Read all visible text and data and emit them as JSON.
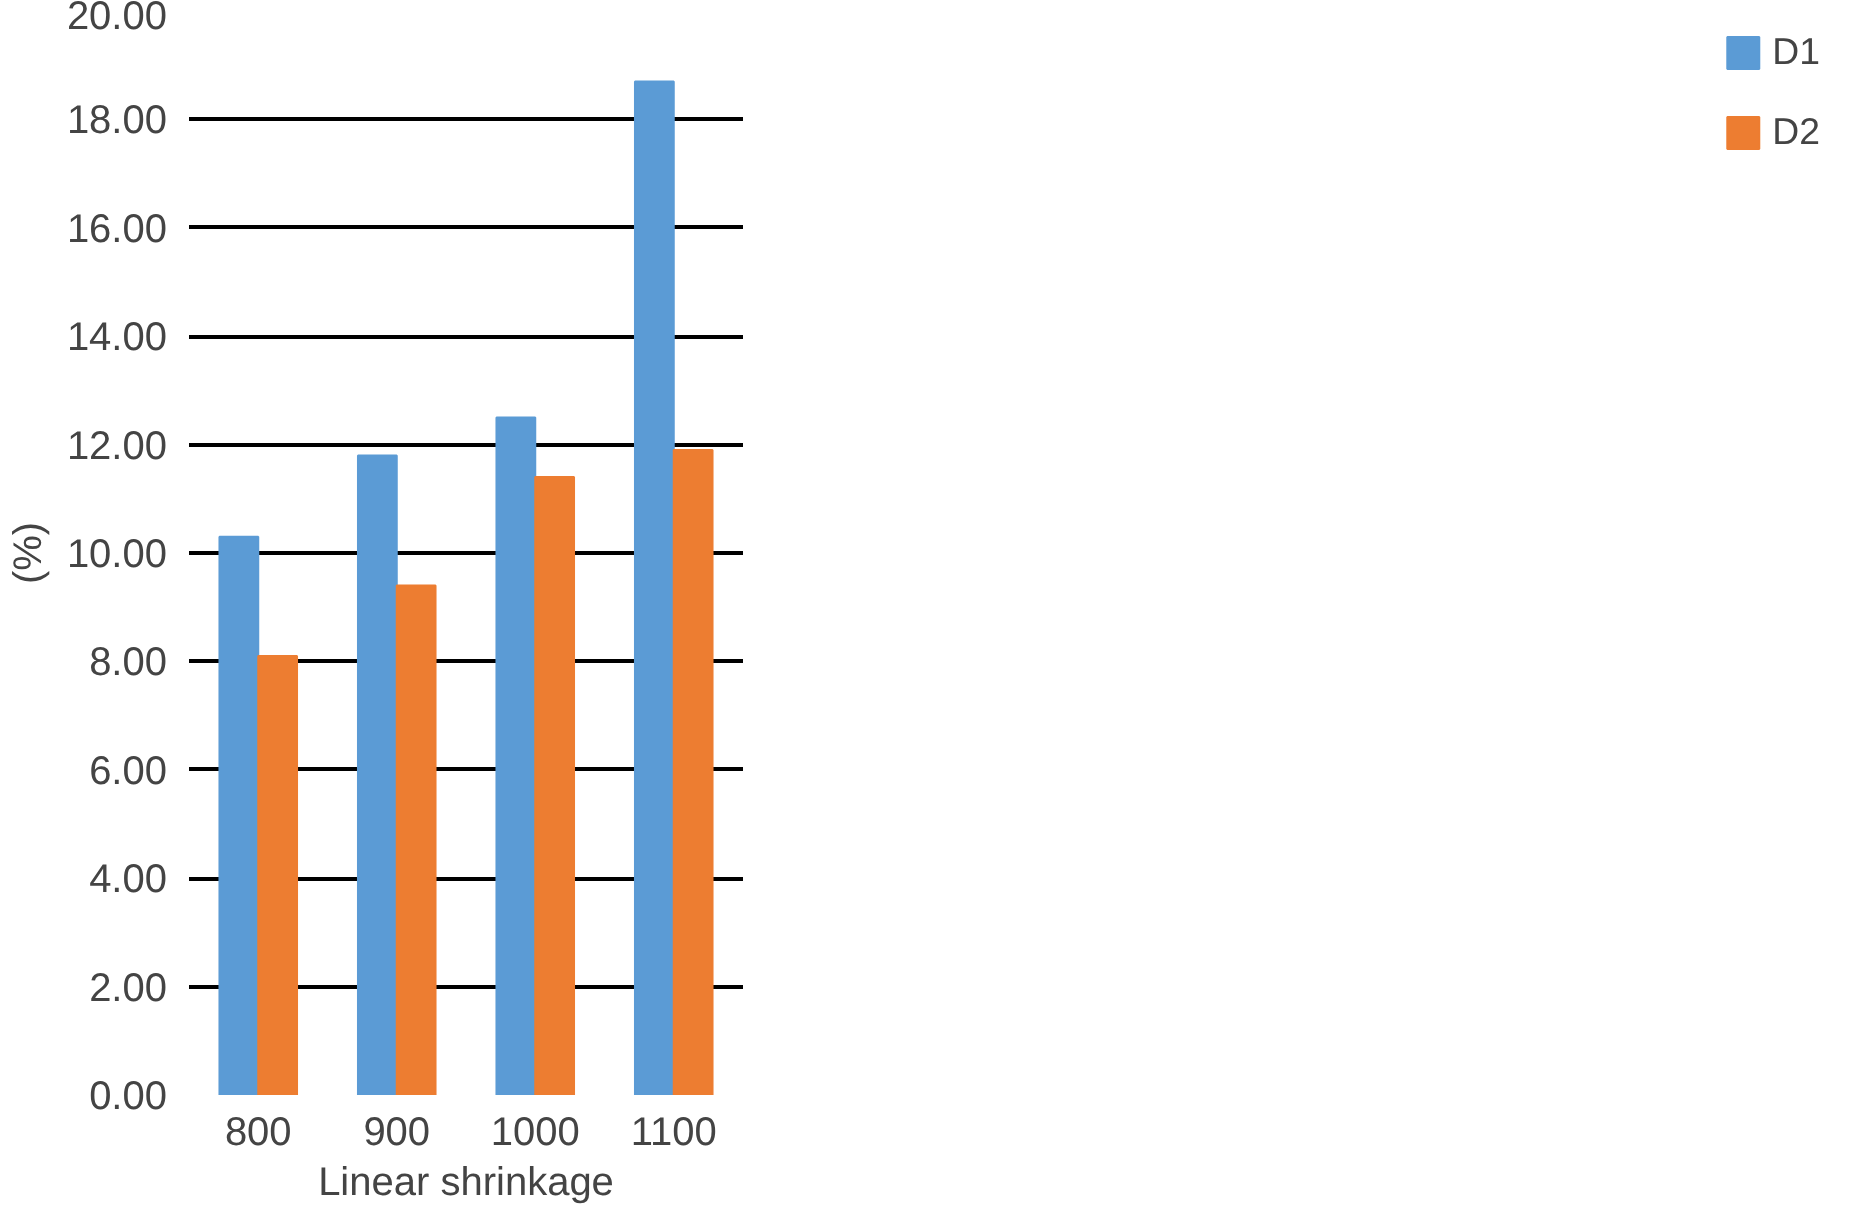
{
  "chart_data": {
    "type": "bar",
    "xlabel": "Linear shrinkage",
    "ylabel": "(%)",
    "categories": [
      "800",
      "900",
      "1000",
      "1100"
    ],
    "series": [
      {
        "name": "D1",
        "color": "#5b9bd5",
        "values": [
          10.3,
          11.8,
          12.5,
          18.7
        ]
      },
      {
        "name": "D2",
        "color": "#ed7d31",
        "values": [
          8.1,
          9.4,
          11.4,
          11.9
        ]
      }
    ],
    "ylim": [
      0,
      20
    ],
    "yticks": [
      {
        "value": 0,
        "label": "0.00"
      },
      {
        "value": 2,
        "label": "2.00"
      },
      {
        "value": 4,
        "label": "4.00"
      },
      {
        "value": 6,
        "label": "6.00"
      },
      {
        "value": 8,
        "label": "8.00"
      },
      {
        "value": 10,
        "label": "10.00"
      },
      {
        "value": 12,
        "label": "12.00"
      },
      {
        "value": 14,
        "label": "14.00"
      },
      {
        "value": 16,
        "label": "16.00"
      },
      {
        "value": 18,
        "label": "18.00"
      },
      {
        "value": 20,
        "label": "20.00"
      }
    ],
    "grid": "y",
    "legend": "right"
  }
}
